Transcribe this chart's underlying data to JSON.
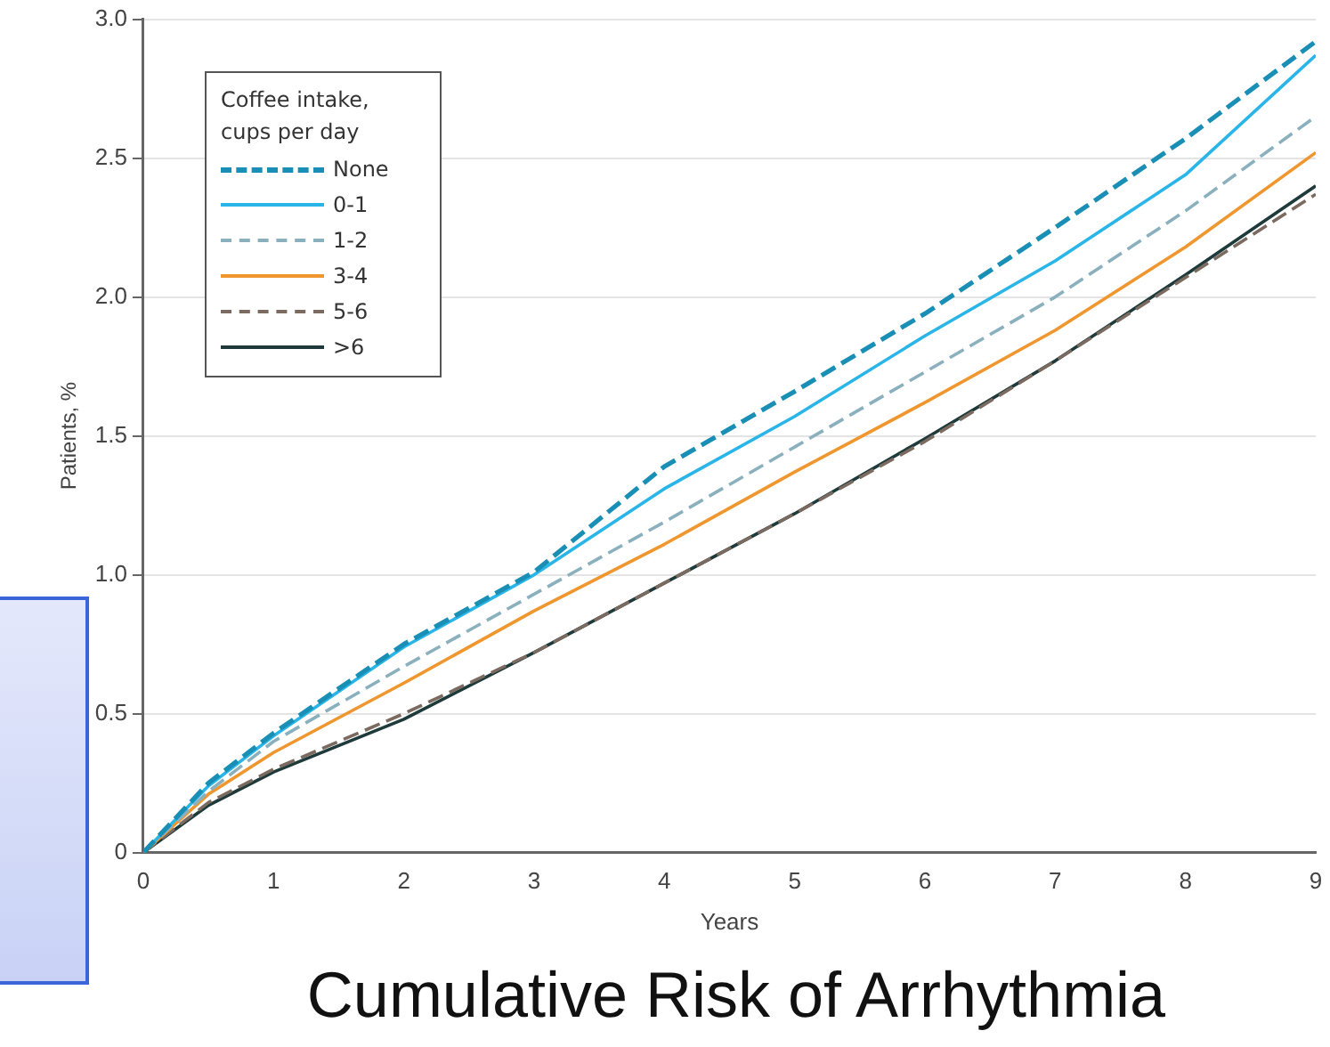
{
  "chart_data": {
    "type": "line",
    "title": "Cumulative Risk of Arrhythmia",
    "xlabel": "Years",
    "ylabel": "Patients, %",
    "legend_title": "Coffee intake, cups per day",
    "x": [
      0,
      0.5,
      1,
      2,
      3,
      4,
      5,
      6,
      7,
      8,
      9
    ],
    "series": [
      {
        "name": "None",
        "color": "#1a8fb5",
        "line_style": "dashed",
        "values": [
          0,
          0.25,
          0.43,
          0.75,
          1.01,
          1.39,
          1.66,
          1.94,
          2.25,
          2.57,
          2.92
        ]
      },
      {
        "name": "0-1",
        "color": "#29b5e8",
        "line_style": "solid",
        "values": [
          0,
          0.24,
          0.42,
          0.74,
          1.0,
          1.31,
          1.57,
          1.86,
          2.13,
          2.44,
          2.87
        ]
      },
      {
        "name": "1-2",
        "color": "#8ab0be",
        "line_style": "dashed",
        "values": [
          0,
          0.22,
          0.4,
          0.67,
          0.93,
          1.19,
          1.46,
          1.73,
          2.0,
          2.31,
          2.65
        ]
      },
      {
        "name": "3-4",
        "color": "#f0962e",
        "line_style": "solid",
        "values": [
          0,
          0.21,
          0.36,
          0.61,
          0.87,
          1.11,
          1.37,
          1.62,
          1.88,
          2.18,
          2.52
        ]
      },
      {
        "name": "5-6",
        "color": "#7a6a60",
        "line_style": "dashed",
        "values": [
          0,
          0.18,
          0.3,
          0.5,
          0.72,
          0.97,
          1.22,
          1.48,
          1.77,
          2.07,
          2.37
        ]
      },
      {
        "name": ">6",
        "color": "#1f3a3a",
        "line_style": "solid",
        "values": [
          0,
          0.17,
          0.29,
          0.48,
          0.72,
          0.97,
          1.22,
          1.49,
          1.77,
          2.08,
          2.4
        ]
      }
    ],
    "xlim": [
      0,
      9
    ],
    "xticks": [
      0,
      1,
      2,
      3,
      4,
      5,
      6,
      7,
      8,
      9
    ],
    "ylim": [
      0,
      3
    ],
    "yticks": [
      0,
      0.5,
      {
        "value": 1,
        "label": "1.0"
      },
      1.5,
      {
        "value": 2,
        "label": "2.0"
      },
      2.5,
      {
        "value": 3,
        "label": "3.0"
      }
    ],
    "grid": "y",
    "legend": "top left",
    "marker": "none"
  }
}
